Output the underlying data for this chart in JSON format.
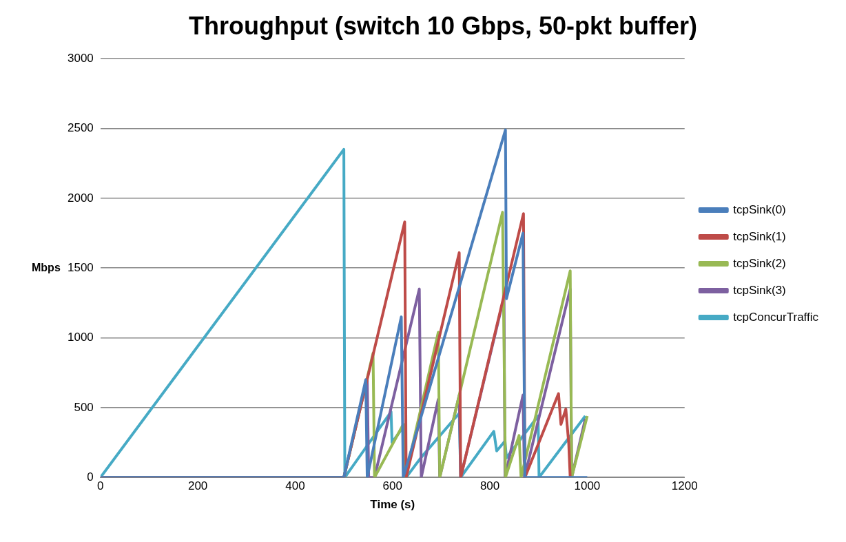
{
  "chart_data": {
    "type": "line",
    "title": "Throughput (switch 10 Gbps, 50-pkt buffer)",
    "xlabel": "Time (s)",
    "ylabel": "Mbps",
    "xlim": [
      0,
      1200
    ],
    "xticks": [
      0,
      200,
      400,
      600,
      800,
      1000,
      1200
    ],
    "ylim": [
      0,
      3000
    ],
    "yticks": [
      0,
      500,
      1000,
      1500,
      2000,
      2500,
      3000
    ],
    "grid": "y",
    "legend": "right",
    "marker": "none",
    "line_style": "solid",
    "series": [
      {
        "name": "tcpSink(0)",
        "color": "#4a7ebb",
        "x": [
          0,
          500,
          545,
          548,
          618,
          622,
          832,
          834,
          868,
          872,
          1000
        ],
        "values": [
          0,
          0,
          700,
          0,
          1150,
          0,
          2490,
          1280,
          1750,
          0,
          0
        ]
      },
      {
        "name": "tcpSink(1)",
        "color": "#be4b48",
        "x": [
          0,
          500,
          625,
          628,
          737,
          740,
          869,
          872,
          941,
          946,
          956,
          962,
          965
        ],
        "values": [
          0,
          0,
          1830,
          0,
          1610,
          0,
          1890,
          0,
          600,
          380,
          490,
          240,
          0
        ]
      },
      {
        "name": "tcpSink(2)",
        "color": "#98b954",
        "x": [
          0,
          500,
          560,
          563,
          622,
          626,
          694,
          697,
          826,
          832,
          860,
          864,
          965,
          968,
          1000
        ],
        "values": [
          0,
          0,
          890,
          0,
          380,
          0,
          1040,
          0,
          1900,
          0,
          300,
          0,
          1480,
          0,
          440
        ]
      },
      {
        "name": "tcpSink(3)",
        "color": "#7d60a0",
        "x": [
          0,
          500,
          548,
          551,
          563,
          655,
          659,
          694,
          697,
          737,
          740,
          829,
          831,
          868,
          871,
          965,
          968,
          996
        ],
        "values": [
          0,
          0,
          710,
          0,
          0,
          1350,
          0,
          560,
          0,
          590,
          0,
          1290,
          0,
          590,
          0,
          1350,
          0,
          420
        ]
      },
      {
        "name": "tcpConcurTraffic",
        "color": "#46aac5",
        "x": [
          0,
          500,
          502,
          597,
          599,
          626,
          628,
          658,
          737,
          740,
          808,
          814,
          831,
          834,
          899,
          901,
          996
        ],
        "values": [
          0,
          2350,
          0,
          470,
          250,
          380,
          0,
          140,
          460,
          0,
          330,
          190,
          260,
          140,
          440,
          0,
          440
        ]
      }
    ]
  }
}
